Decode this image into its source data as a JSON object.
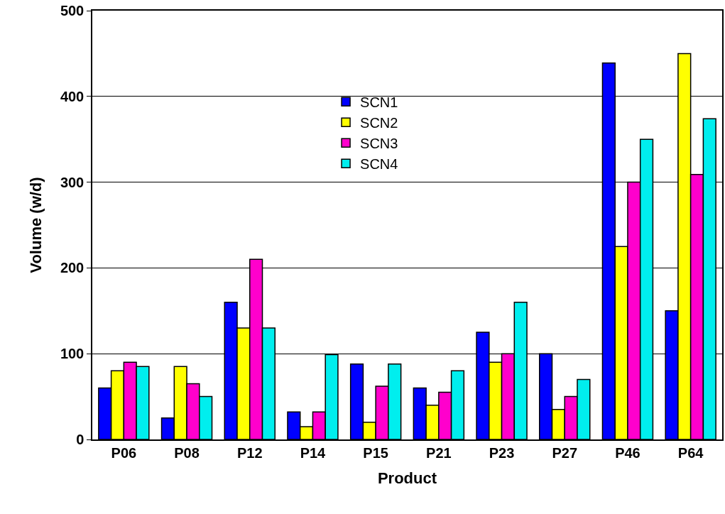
{
  "chart_data": {
    "type": "bar",
    "xlabel": "Product",
    "ylabel": "Volume (w/d)",
    "categories": [
      "P06",
      "P08",
      "P12",
      "P14",
      "P15",
      "P21",
      "P23",
      "P27",
      "P46",
      "P64"
    ],
    "series": [
      {
        "name": "SCN1",
        "color": "#0000ff",
        "values": [
          60,
          25,
          160,
          32,
          88,
          60,
          125,
          100,
          439,
          150
        ]
      },
      {
        "name": "SCN2",
        "color": "#ffff00",
        "values": [
          80,
          85,
          130,
          15,
          20,
          40,
          90,
          35,
          225,
          450
        ]
      },
      {
        "name": "SCN3",
        "color": "#ff00cc",
        "values": [
          90,
          65,
          210,
          32,
          62,
          55,
          100,
          50,
          300,
          309
        ]
      },
      {
        "name": "SCN4",
        "color": "#00eeee",
        "values": [
          85,
          50,
          130,
          99,
          88,
          80,
          160,
          70,
          350,
          374
        ]
      }
    ],
    "ylim": [
      0,
      500
    ],
    "yticks": [
      0,
      100,
      200,
      300,
      400,
      500
    ],
    "grid": "y",
    "legend": "top center"
  }
}
